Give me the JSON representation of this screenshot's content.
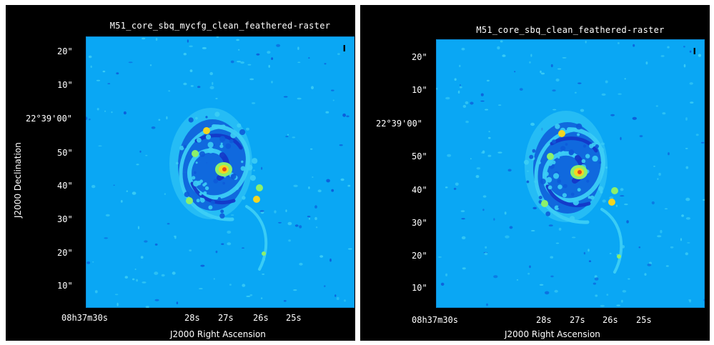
{
  "panels": [
    {
      "title": "M51_core_sbq_mycfg_clean_feathered-raster",
      "stokes": "I",
      "xlabel": "J2000 Right Ascension",
      "ylabel": "J2000 Declination",
      "y_ticks": [
        "20\"",
        "10\"",
        "22°39'00\"",
        "50\"",
        "40\"",
        "30\"",
        "20\"",
        "10\""
      ],
      "x_ticks": [
        "08h37m30s",
        "28s",
        "27s",
        "26s",
        "25s"
      ]
    },
    {
      "title": "M51_core_sbq_clean_feathered-raster",
      "stokes": "I",
      "xlabel": "J2000 Right Ascension",
      "ylabel": "",
      "y_ticks": [
        "20\"",
        "10\"",
        "22°39'00\"",
        "50\"",
        "40\"",
        "30\"",
        "20\"",
        "10\""
      ],
      "x_ticks": [
        "08h37m30s",
        "28s",
        "27s",
        "26s",
        "25s"
      ]
    }
  ],
  "colors": {
    "background": "#0aa7f4",
    "arm": "#0d5bd9",
    "deep": "#1438c8",
    "light": "#3ccdf5",
    "green": "#8df06a",
    "yellow": "#f4d520",
    "red": "#e64a1a"
  }
}
